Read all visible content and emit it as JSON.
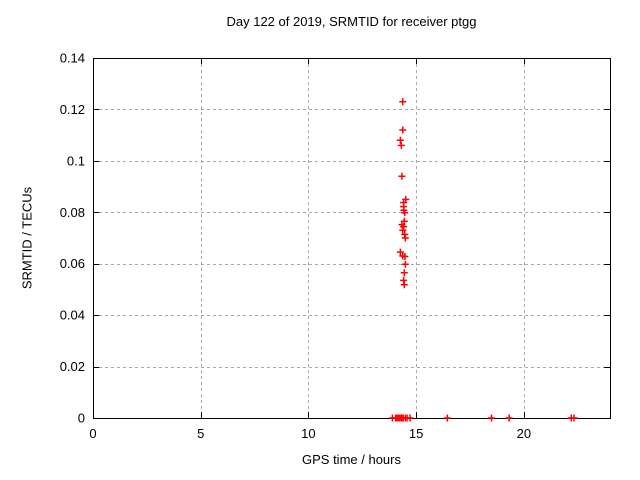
{
  "window": {
    "background": "#ffffff"
  },
  "chart_data": {
    "type": "scatter",
    "title": "Day 122 of 2019, SRMTID for receiver ptgg",
    "xlabel": "GPS time / hours",
    "ylabel": "SRMTID / TECUs",
    "xlim": [
      0,
      24
    ],
    "ylim": [
      0,
      0.14
    ],
    "xticks": [
      0,
      5,
      10,
      15,
      20
    ],
    "yticks": [
      0,
      0.02,
      0.04,
      0.06,
      0.08,
      0.1,
      0.12,
      0.14
    ],
    "xtick_labels": [
      "0",
      "5",
      "10",
      "15",
      "20"
    ],
    "ytick_labels": [
      "0",
      "0.02",
      "0.04",
      "0.06",
      "0.08",
      "0.1",
      "0.12",
      "0.14"
    ],
    "grid": true,
    "grid_style": "dashed",
    "legend_position": "none",
    "marker": "plus",
    "colors": {
      "marker": "#ff0000",
      "grid": "#a8a8a8",
      "axis": "#000000",
      "background": "#ffffff"
    },
    "series": [
      {
        "name": "SRMTID",
        "points": [
          [
            14.38,
            0.123
          ],
          [
            14.38,
            0.112
          ],
          [
            14.27,
            0.108
          ],
          [
            14.31,
            0.106
          ],
          [
            14.34,
            0.094
          ],
          [
            14.52,
            0.085
          ],
          [
            14.42,
            0.0838
          ],
          [
            14.42,
            0.0822
          ],
          [
            14.43,
            0.0808
          ],
          [
            14.47,
            0.0798
          ],
          [
            14.45,
            0.0765
          ],
          [
            14.34,
            0.0752
          ],
          [
            14.42,
            0.0744
          ],
          [
            14.38,
            0.073
          ],
          [
            14.47,
            0.0714
          ],
          [
            14.5,
            0.07
          ],
          [
            14.27,
            0.0645
          ],
          [
            14.38,
            0.063
          ],
          [
            14.48,
            0.0628
          ],
          [
            14.5,
            0.0598
          ],
          [
            14.45,
            0.0565
          ],
          [
            14.42,
            0.0535
          ],
          [
            14.45,
            0.0518
          ],
          [
            13.9,
            0.0
          ],
          [
            14.05,
            0.0
          ],
          [
            14.12,
            0.0
          ],
          [
            14.19,
            0.0
          ],
          [
            14.26,
            0.0
          ],
          [
            14.33,
            0.0
          ],
          [
            14.4,
            0.0
          ],
          [
            14.5,
            0.0
          ],
          [
            14.58,
            0.0
          ],
          [
            14.72,
            0.0
          ],
          [
            16.45,
            0.0
          ],
          [
            18.5,
            0.0
          ],
          [
            19.32,
            0.0
          ],
          [
            22.2,
            0.0
          ],
          [
            22.33,
            0.0
          ]
        ]
      }
    ]
  }
}
